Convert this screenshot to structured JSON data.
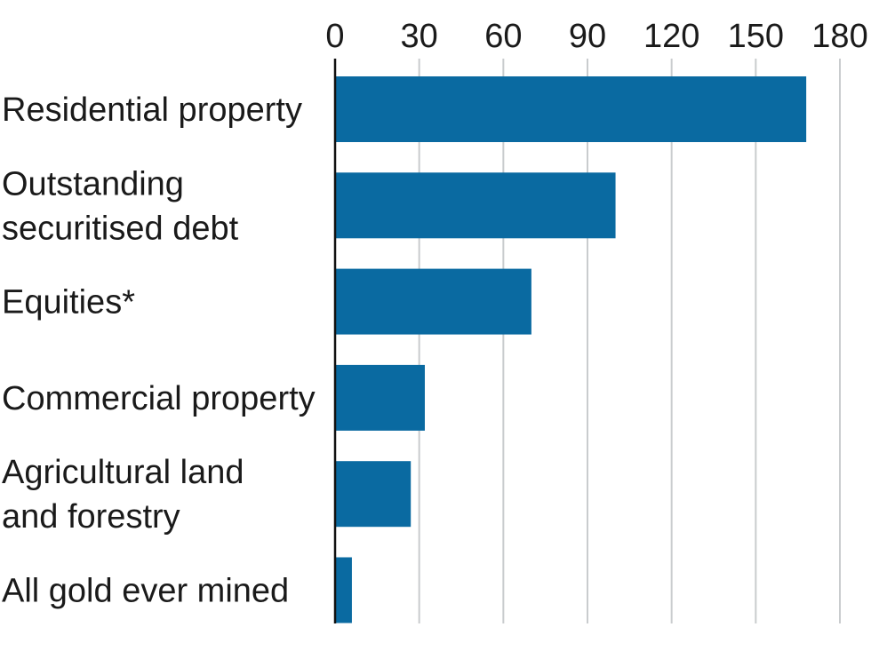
{
  "chart_data": {
    "type": "bar",
    "orientation": "horizontal",
    "categories": [
      [
        "Residential property"
      ],
      [
        "Outstanding",
        "securitised debt"
      ],
      [
        "Equities*"
      ],
      [
        "Commercial property"
      ],
      [
        "Agricultural land",
        "and forestry"
      ],
      [
        "All gold ever mined"
      ]
    ],
    "values": [
      168,
      100,
      70,
      32,
      27,
      6
    ],
    "xlim": [
      0,
      180
    ],
    "ticks": [
      0,
      30,
      60,
      90,
      120,
      150,
      180
    ],
    "tick_labels": [
      "0",
      "30",
      "60",
      "90",
      "120",
      "150",
      "180"
    ],
    "grid": true,
    "axis_position": "top",
    "bar_color": "#0a6aa1",
    "grid_color": "#c9ccce",
    "axis_color": "#111111"
  }
}
